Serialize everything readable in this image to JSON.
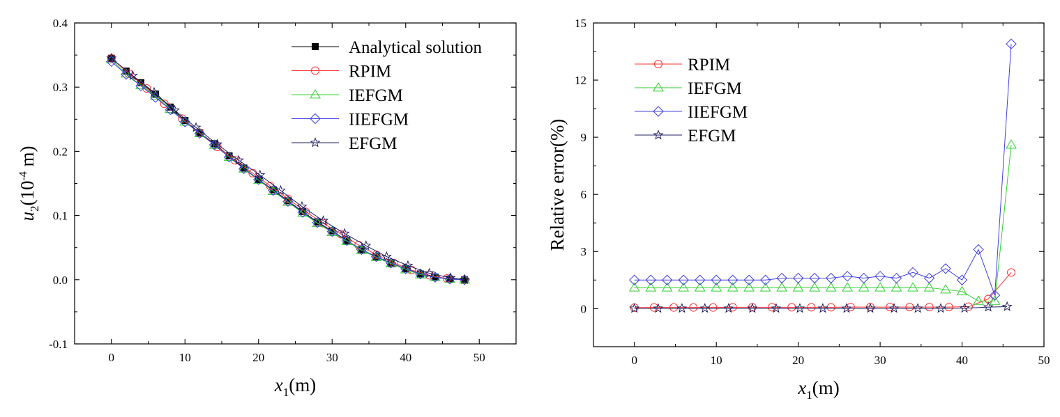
{
  "chart_data": [
    {
      "type": "line",
      "xlabel": {
        "var": "x",
        "sub": "1",
        "unit": "(m)"
      },
      "ylabel": {
        "var": "u",
        "sub": "2",
        "pre": "(10",
        "exp": "-4",
        "post": " m)"
      },
      "xlim": [
        -5,
        55
      ],
      "ylim": [
        -0.1,
        0.4
      ],
      "x_ticks": [
        0,
        10,
        20,
        30,
        40,
        50
      ],
      "x_tick_labels": [
        "0",
        "10",
        "20",
        "30",
        "40",
        "50"
      ],
      "y_ticks": [
        -0.1,
        0.0,
        0.1,
        0.2,
        0.3,
        0.4
      ],
      "y_tick_labels": [
        "-0.1",
        "0.0",
        "0.1",
        "0.2",
        "0.3",
        "0.4"
      ],
      "legend_position": "top-right",
      "series": [
        {
          "name": "Analytical solution",
          "marker": "filled-square",
          "color": "#000000",
          "x": [
            0,
            2,
            4,
            6,
            8,
            10,
            12,
            14,
            16,
            18,
            20,
            22,
            24,
            26,
            28,
            30,
            32,
            34,
            36,
            38,
            40,
            42,
            44,
            46,
            48
          ],
          "y": [
            0.345,
            0.325,
            0.307,
            0.289,
            0.269,
            0.248,
            0.229,
            0.212,
            0.193,
            0.174,
            0.156,
            0.14,
            0.123,
            0.106,
            0.09,
            0.076,
            0.061,
            0.047,
            0.036,
            0.026,
            0.017,
            0.009,
            0.004,
            0.001,
            0.0
          ]
        },
        {
          "name": "RPIM",
          "marker": "circle",
          "color": "#ff3030",
          "x": [
            0,
            2.4,
            4.8,
            7.2,
            9.6,
            12,
            14.4,
            16.8,
            19.2,
            21.6,
            24,
            26.4,
            28.8,
            31.2,
            33.6,
            36,
            38.4,
            40.8,
            43.2,
            45.6,
            48
          ],
          "y": [
            0.345,
            0.321,
            0.298,
            0.274,
            0.251,
            0.229,
            0.207,
            0.186,
            0.166,
            0.146,
            0.126,
            0.106,
            0.088,
            0.071,
            0.054,
            0.039,
            0.026,
            0.015,
            0.007,
            0.002,
            0.0
          ]
        },
        {
          "name": "IEFGM",
          "marker": "triangle",
          "color": "#30d030",
          "x": [
            0,
            2,
            4,
            6,
            8,
            10,
            12,
            14,
            16,
            18,
            20,
            22,
            24,
            26,
            28,
            30,
            32,
            34,
            36,
            38,
            40,
            42,
            44,
            46,
            48
          ],
          "y": [
            0.343,
            0.321,
            0.303,
            0.286,
            0.266,
            0.246,
            0.228,
            0.21,
            0.191,
            0.173,
            0.155,
            0.138,
            0.121,
            0.104,
            0.088,
            0.074,
            0.06,
            0.046,
            0.035,
            0.025,
            0.016,
            0.008,
            0.004,
            0.001,
            0.0
          ]
        },
        {
          "name": "IIEFGM",
          "marker": "diamond",
          "color": "#4040e0",
          "x": [
            0,
            2,
            4,
            6,
            8,
            10,
            12,
            14,
            16,
            18,
            20,
            22,
            24,
            26,
            28,
            30,
            32,
            34,
            36,
            38,
            40,
            42,
            44,
            46,
            48
          ],
          "y": [
            0.34,
            0.32,
            0.302,
            0.284,
            0.265,
            0.246,
            0.228,
            0.21,
            0.191,
            0.173,
            0.156,
            0.139,
            0.122,
            0.105,
            0.089,
            0.075,
            0.061,
            0.047,
            0.036,
            0.026,
            0.017,
            0.009,
            0.004,
            0.001,
            0.0
          ]
        },
        {
          "name": "EFGM",
          "marker": "star",
          "color": "#202060",
          "x": [
            0,
            2.9,
            5.8,
            8.6,
            11.5,
            14.4,
            17.3,
            20.2,
            23.0,
            25.9,
            28.8,
            31.7,
            34.6,
            37.4,
            40.3,
            43.2,
            46.1,
            48
          ],
          "y": [
            0.345,
            0.318,
            0.292,
            0.264,
            0.237,
            0.211,
            0.186,
            0.163,
            0.139,
            0.114,
            0.092,
            0.072,
            0.053,
            0.036,
            0.022,
            0.01,
            0.003,
            0.0
          ]
        }
      ]
    },
    {
      "type": "line",
      "xlabel": {
        "var": "x",
        "sub": "1",
        "unit": "(m)"
      },
      "ylabel": {
        "text": "Relative error(%)"
      },
      "xlim": [
        -5,
        50
      ],
      "ylim": [
        -2,
        15
      ],
      "x_ticks": [
        0,
        10,
        20,
        30,
        40,
        50
      ],
      "x_tick_labels": [
        "0",
        "10",
        "20",
        "30",
        "40",
        "50"
      ],
      "y_ticks": [
        0,
        3,
        6,
        9,
        12,
        15
      ],
      "y_tick_labels": [
        "0",
        "3",
        "6",
        "9",
        "12",
        "15"
      ],
      "legend_position": "top-left",
      "series": [
        {
          "name": "RPIM",
          "marker": "circle",
          "color": "#ff3030",
          "x": [
            0,
            2.4,
            4.8,
            7.2,
            9.6,
            12,
            14.4,
            16.8,
            19.2,
            21.6,
            24,
            26.4,
            28.8,
            31.2,
            33.6,
            36,
            38.4,
            40.8,
            43.2,
            46
          ],
          "y": [
            0.05,
            0.06,
            0.06,
            0.06,
            0.06,
            0.07,
            0.07,
            0.07,
            0.07,
            0.07,
            0.07,
            0.08,
            0.08,
            0.08,
            0.08,
            0.08,
            0.08,
            0.1,
            0.5,
            1.9
          ]
        },
        {
          "name": "IEFGM",
          "marker": "triangle",
          "color": "#30d030",
          "x": [
            0,
            2,
            4,
            6,
            8,
            10,
            12,
            14,
            16,
            18,
            20,
            22,
            24,
            26,
            28,
            30,
            32,
            34,
            36,
            38,
            40,
            42,
            44,
            46
          ],
          "y": [
            1.1,
            1.1,
            1.1,
            1.1,
            1.1,
            1.1,
            1.1,
            1.1,
            1.1,
            1.1,
            1.1,
            1.1,
            1.1,
            1.1,
            1.1,
            1.1,
            1.1,
            1.1,
            1.1,
            1.0,
            0.9,
            0.4,
            0.4,
            8.6
          ]
        },
        {
          "name": "IIEFGM",
          "marker": "diamond",
          "color": "#4040e0",
          "x": [
            0,
            2,
            4,
            6,
            8,
            10,
            12,
            14,
            16,
            18,
            20,
            22,
            24,
            26,
            28,
            30,
            32,
            34,
            36,
            38,
            40,
            42,
            44,
            46
          ],
          "y": [
            1.5,
            1.5,
            1.5,
            1.5,
            1.5,
            1.5,
            1.5,
            1.5,
            1.5,
            1.6,
            1.6,
            1.6,
            1.6,
            1.7,
            1.6,
            1.7,
            1.6,
            1.9,
            1.6,
            2.1,
            1.5,
            3.1,
            0.7,
            13.9
          ]
        },
        {
          "name": "EFGM",
          "marker": "star",
          "color": "#202060",
          "x": [
            0,
            2.9,
            5.8,
            8.6,
            11.5,
            14.4,
            17.3,
            20.2,
            23.0,
            25.9,
            28.8,
            31.7,
            34.6,
            37.4,
            40.3,
            43.2,
            45.5
          ],
          "y": [
            0.01,
            0.01,
            0.01,
            0.01,
            0.01,
            0.01,
            0.01,
            0.01,
            0.01,
            0.01,
            0.01,
            0.01,
            0.01,
            0.01,
            0.02,
            0.08,
            0.1
          ]
        }
      ]
    }
  ]
}
